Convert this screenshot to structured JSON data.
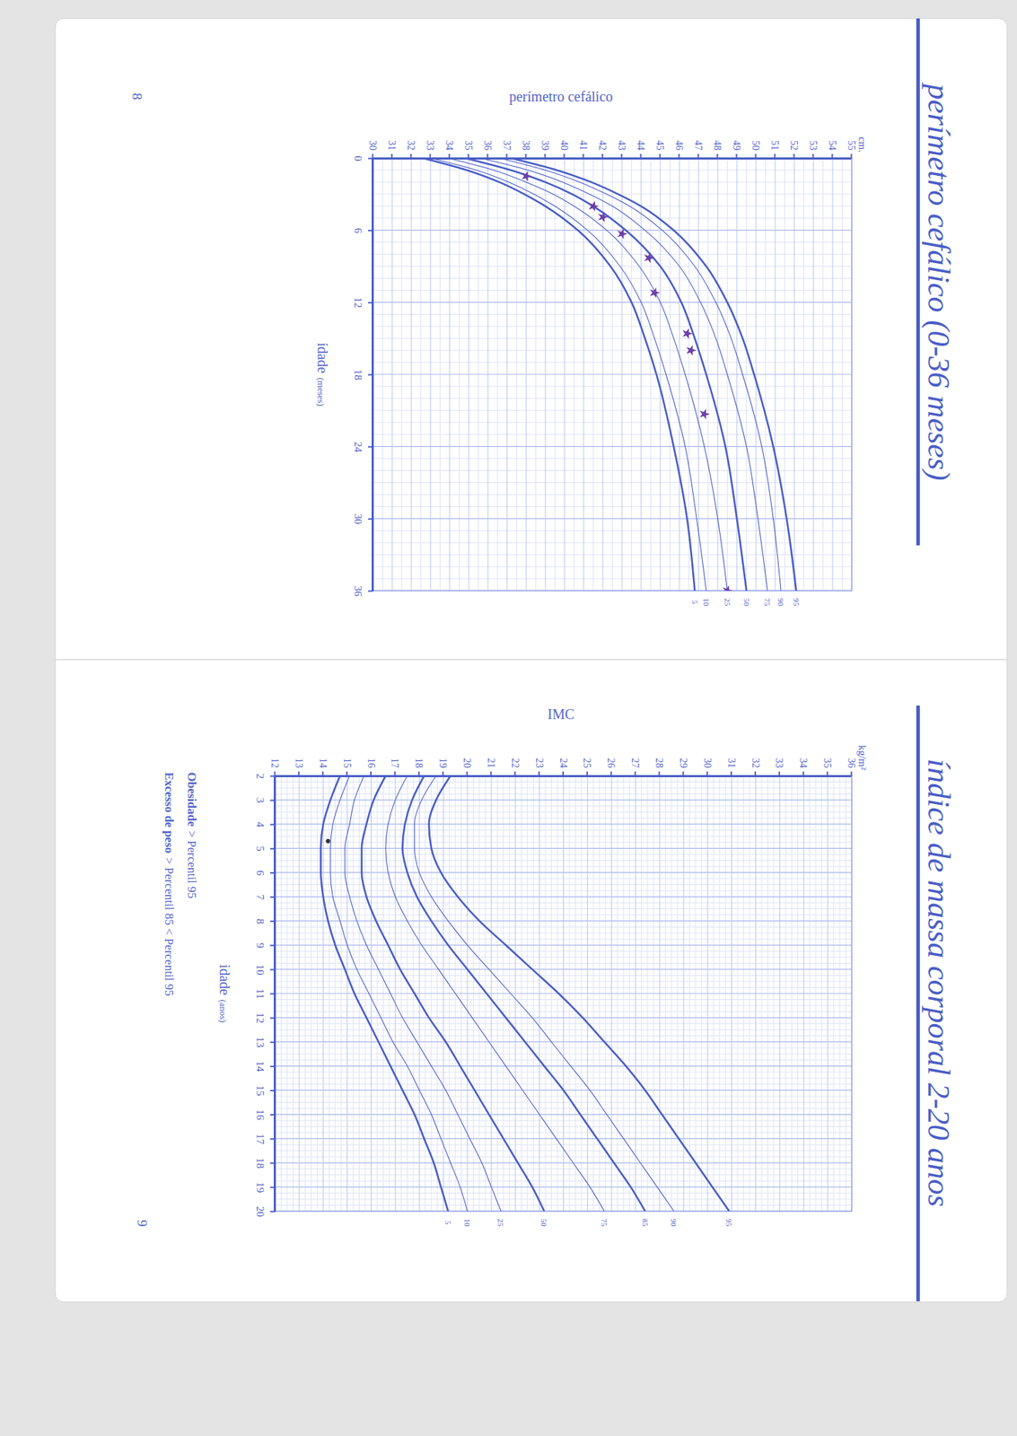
{
  "chart_data": [
    {
      "type": "line",
      "title": "perímetro cefálico (0-36 meses)",
      "page": "8",
      "y_label": "perímetro cefálico",
      "y_unit": "cm.",
      "x_label": "idade",
      "x_label_unit": "(meses)",
      "x": [
        0,
        1,
        2,
        3,
        4,
        6,
        9,
        12,
        15,
        18,
        24,
        30,
        36
      ],
      "xlim": [
        0,
        36
      ],
      "xticks": [
        0,
        6,
        12,
        18,
        24,
        30,
        36
      ],
      "ylim": [
        30,
        55
      ],
      "yticks": [
        30,
        31,
        32,
        33,
        34,
        35,
        36,
        37,
        38,
        39,
        40,
        41,
        42,
        43,
        44,
        45,
        46,
        47,
        48,
        49,
        50,
        51,
        52,
        53,
        54,
        55
      ],
      "grid": true,
      "series": [
        {
          "name": "5",
          "color": "#4a5ec6",
          "line_style": "bold",
          "values": [
            32.6,
            34.9,
            36.6,
            37.9,
            39.0,
            40.7,
            42.4,
            43.5,
            44.2,
            44.8,
            45.7,
            46.4,
            46.8
          ]
        },
        {
          "name": "10",
          "color": "#4a5ec6",
          "line_style": "solid",
          "values": [
            33.0,
            35.4,
            37.1,
            38.4,
            39.5,
            41.2,
            42.9,
            44.0,
            44.7,
            45.3,
            46.3,
            46.9,
            47.4
          ]
        },
        {
          "name": "25",
          "color": "#4a5ec6",
          "line_style": "solid",
          "values": [
            33.9,
            36.3,
            38.0,
            39.4,
            40.5,
            42.2,
            43.9,
            45.0,
            45.7,
            46.3,
            47.3,
            48.0,
            48.5
          ]
        },
        {
          "name": "50",
          "color": "#4a5ec6",
          "line_style": "bold",
          "values": [
            34.8,
            37.2,
            39.0,
            40.4,
            41.5,
            43.2,
            45.0,
            46.1,
            46.8,
            47.4,
            48.4,
            49.0,
            49.5
          ]
        },
        {
          "name": "75",
          "color": "#4a5ec6",
          "line_style": "solid",
          "values": [
            35.6,
            38.1,
            39.9,
            41.3,
            42.5,
            44.2,
            46.0,
            47.1,
            47.9,
            48.5,
            49.5,
            50.1,
            50.6
          ]
        },
        {
          "name": "90",
          "color": "#4a5ec6",
          "line_style": "solid",
          "values": [
            36.6,
            39.0,
            40.8,
            42.2,
            43.4,
            45.1,
            46.8,
            47.9,
            48.7,
            49.3,
            50.3,
            50.9,
            51.3
          ]
        },
        {
          "name": "95",
          "color": "#4a5ec6",
          "line_style": "bold",
          "values": [
            37.2,
            39.6,
            41.4,
            42.8,
            44.0,
            45.7,
            47.4,
            48.5,
            49.3,
            49.9,
            50.9,
            51.6,
            52.1
          ]
        }
      ],
      "points": {
        "x": [
          1.5,
          4.0,
          4.9,
          6.3,
          8.3,
          11.2,
          14.6,
          16.0,
          21.3,
          36.0
        ],
        "y": [
          38.0,
          41.5,
          42.0,
          43.0,
          44.4,
          44.7,
          46.4,
          46.6,
          47.3,
          48.5
        ],
        "color": "#6b3fa8",
        "marker": "star"
      }
    },
    {
      "type": "line",
      "title": "índice de massa corporal 2-20 anos",
      "page": "9",
      "y_label": "IMC",
      "y_unit": "kg/m²",
      "x_label": "idade",
      "x_label_unit": "(anos)",
      "x": [
        2,
        3,
        4,
        5,
        6,
        7,
        8,
        9,
        10,
        11,
        12,
        13,
        14,
        15,
        16,
        17,
        18,
        19,
        20
      ],
      "xlim": [
        2,
        20
      ],
      "xticks": [
        2,
        3,
        4,
        5,
        6,
        7,
        8,
        9,
        10,
        11,
        12,
        13,
        14,
        15,
        16,
        17,
        18,
        19,
        20
      ],
      "ylim": [
        12,
        36
      ],
      "yticks": [
        12,
        13,
        14,
        15,
        16,
        17,
        18,
        19,
        20,
        21,
        22,
        23,
        24,
        25,
        26,
        27,
        28,
        29,
        30,
        31,
        32,
        33,
        34,
        35,
        36
      ],
      "grid": true,
      "series": [
        {
          "name": "5",
          "color": "#4a5ec6",
          "line_style": "bold",
          "values": [
            14.7,
            14.3,
            14.0,
            13.9,
            13.9,
            14.0,
            14.2,
            14.5,
            14.9,
            15.3,
            15.8,
            16.3,
            16.8,
            17.3,
            17.8,
            18.2,
            18.6,
            18.9,
            19.2
          ]
        },
        {
          "name": "10",
          "color": "#4a5ec6",
          "line_style": "solid",
          "values": [
            15.1,
            14.7,
            14.4,
            14.3,
            14.3,
            14.4,
            14.7,
            15.0,
            15.4,
            15.9,
            16.4,
            16.9,
            17.5,
            18.0,
            18.5,
            18.9,
            19.3,
            19.7,
            20.0
          ]
        },
        {
          "name": "25",
          "color": "#4a5ec6",
          "line_style": "solid",
          "values": [
            15.7,
            15.3,
            15.1,
            14.9,
            14.9,
            15.1,
            15.4,
            15.8,
            16.3,
            16.8,
            17.3,
            17.9,
            18.5,
            19.1,
            19.6,
            20.1,
            20.6,
            21.0,
            21.4
          ]
        },
        {
          "name": "50",
          "color": "#4a5ec6",
          "line_style": "bold",
          "values": [
            16.6,
            16.1,
            15.8,
            15.6,
            15.6,
            15.8,
            16.2,
            16.7,
            17.2,
            17.8,
            18.4,
            19.1,
            19.7,
            20.3,
            20.9,
            21.5,
            22.1,
            22.7,
            23.2
          ]
        },
        {
          "name": "75",
          "color": "#4a5ec6",
          "line_style": "solid",
          "values": [
            17.5,
            17.0,
            16.7,
            16.6,
            16.7,
            17.0,
            17.5,
            18.1,
            18.8,
            19.5,
            20.2,
            20.9,
            21.6,
            22.3,
            23.0,
            23.7,
            24.4,
            25.1,
            25.7
          ]
        },
        {
          "name": "85",
          "color": "#4a5ec6",
          "line_style": "bold",
          "values": [
            18.2,
            17.7,
            17.4,
            17.3,
            17.5,
            17.9,
            18.5,
            19.2,
            20.0,
            20.8,
            21.6,
            22.4,
            23.2,
            24.0,
            24.7,
            25.4,
            26.1,
            26.8,
            27.4
          ]
        },
        {
          "name": "90",
          "color": "#4a5ec6",
          "line_style": "solid",
          "values": [
            18.7,
            18.1,
            17.8,
            17.8,
            18.0,
            18.5,
            19.2,
            20.0,
            20.9,
            21.8,
            22.7,
            23.5,
            24.3,
            25.1,
            25.8,
            26.5,
            27.2,
            27.9,
            28.6
          ]
        },
        {
          "name": "95",
          "color": "#4a5ec6",
          "line_style": "bold",
          "values": [
            19.3,
            18.7,
            18.4,
            18.5,
            18.9,
            19.6,
            20.5,
            21.6,
            22.7,
            23.8,
            24.8,
            25.7,
            26.6,
            27.4,
            28.1,
            28.8,
            29.5,
            30.2,
            30.9
          ]
        }
      ],
      "points": {
        "x": [
          4.7
        ],
        "y": [
          14.2
        ],
        "color": "#333333",
        "marker": "circle"
      },
      "annotations": [
        {
          "term": "Obesidade",
          "text": "> Percentil 95"
        },
        {
          "term": "Excesso de peso",
          "text": "> Percentil 85 < Percentil 95"
        }
      ]
    }
  ]
}
